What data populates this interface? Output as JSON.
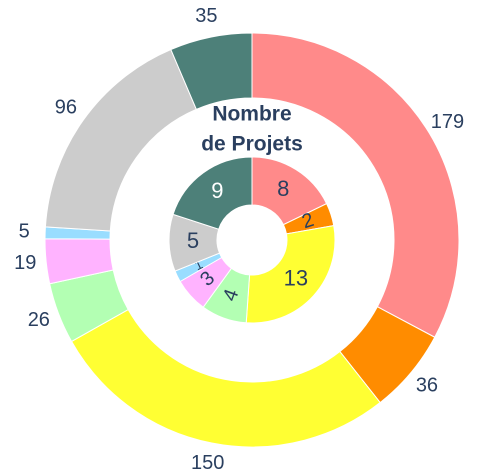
{
  "chart_data": {
    "type": "donut",
    "title": [
      "Nombre",
      "de Projets"
    ],
    "series": [
      {
        "values": [
          179,
          36,
          150,
          26,
          19,
          5,
          96,
          35
        ],
        "colors": [
          "#ff8a8a",
          "#ff8c00",
          "#ffff33",
          "#b3ffb3",
          "#ffb3ff",
          "#99ddff",
          "#cccccc",
          "#4d8079"
        ]
      },
      {
        "values": [
          8,
          2,
          13,
          4,
          3,
          1,
          5,
          9
        ],
        "colors": [
          "#ff8a8a",
          "#ff8c00",
          "#ffff33",
          "#b3ffb3",
          "#ffb3ff",
          "#99ddff",
          "#cccccc",
          "#4d8079"
        ]
      }
    ]
  }
}
